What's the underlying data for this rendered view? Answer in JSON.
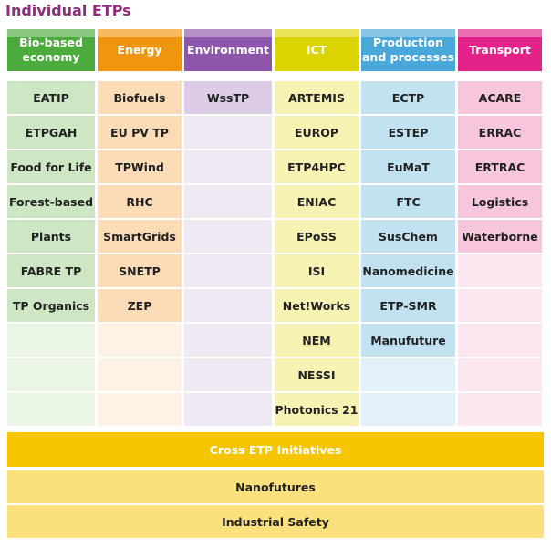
{
  "title": "Individual ETPs",
  "columns": [
    {
      "header": "Bio-based economy",
      "color": "#4daa3c",
      "filled": "#cde6c3",
      "empty": "#ebf5e6",
      "items": [
        "EATIP",
        "ETPGAH",
        "Food for Life",
        "Forest-based",
        "Plants",
        "FABRE TP",
        "TP Organics"
      ]
    },
    {
      "header": "Energy",
      "color": "#f0960e",
      "filled": "#fbdcb7",
      "empty": "#fdf2e4",
      "items": [
        "Biofuels",
        "EU PV TP",
        "TPWind",
        "RHC",
        "SmartGrids",
        "SNETP",
        "ZEP"
      ]
    },
    {
      "header": "Environment",
      "color": "#8e56aa",
      "filled": "#dccce6",
      "empty": "#efe9f3",
      "items": [
        "WssTP"
      ]
    },
    {
      "header": "ICT",
      "color": "#dcd400",
      "filled": "#f6f3b2",
      "empty": "#f9f8d8",
      "items": [
        "ARTEMIS",
        "EUROP",
        "ETP4HPC",
        "ENIAC",
        "EPoSS",
        "ISI",
        "Net!Works",
        "NEM",
        "NESSI",
        "Photonics 21"
      ]
    },
    {
      "header": "Production and processes",
      "color": "#4aa7da",
      "filled": "#c2e2f2",
      "empty": "#e2f1f9",
      "items": [
        "ECTP",
        "ESTEP",
        "EuMaT",
        "FTC",
        "SusChem",
        "Nanomedicine",
        "ETP-SMR",
        "Manufuture"
      ]
    },
    {
      "header": "Transport",
      "color": "#e3238a",
      "filled": "#f7c6dd",
      "empty": "#fce6f0",
      "items": [
        "ACARE",
        "ERRAC",
        "ERTRAC",
        "Logistics",
        "Waterborne"
      ]
    }
  ],
  "cross": {
    "header": "Cross ETP Initiatives",
    "header_color": "#f7c500",
    "item_color": "#fbe07d",
    "items": [
      "Nanofutures",
      "Industrial Safety"
    ]
  }
}
